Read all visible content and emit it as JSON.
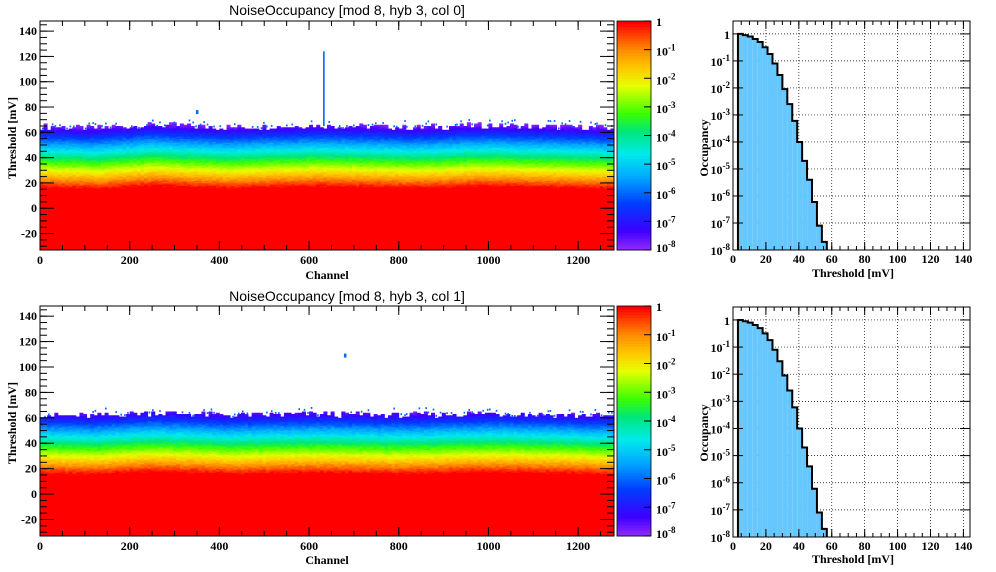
{
  "chart_data": [
    {
      "type": "heatmap",
      "title": "NoiseOccupancy [mod 8, hyb 3, col 0]",
      "xlabel": "Channel",
      "ylabel": "Threshold [mV]",
      "xlim": [
        0,
        1280
      ],
      "ylim": [
        -33,
        148
      ],
      "xticks": [
        0,
        200,
        400,
        600,
        800,
        1000,
        1200
      ],
      "yticks": [
        -20,
        0,
        20,
        40,
        60,
        80,
        100,
        120,
        140
      ],
      "zscale": "log",
      "zlim": [
        1e-08,
        1
      ],
      "colorbar_ticks": [
        {
          "value": 1,
          "base": "1",
          "exp": ""
        },
        {
          "value": 0.1,
          "base": "10",
          "exp": "-1"
        },
        {
          "value": 0.01,
          "base": "10",
          "exp": "-2"
        },
        {
          "value": 0.001,
          "base": "10",
          "exp": "-3"
        },
        {
          "value": 0.0001,
          "base": "10",
          "exp": "-4"
        },
        {
          "value": 1e-05,
          "base": "10",
          "exp": "-5"
        },
        {
          "value": 1e-06,
          "base": "10",
          "exp": "-6"
        },
        {
          "value": 1e-07,
          "base": "10",
          "exp": "-7"
        },
        {
          "value": 1e-08,
          "base": "10",
          "exp": "-8"
        }
      ],
      "profile_mV": {
        "full_occupancy_below": 15,
        "decade_drop_per_mV": 0.16,
        "noise_edge_mean": 63,
        "noise_edge_spread": 5,
        "modulation_channels": [
          [
            0,
            1.0
          ],
          [
            130,
            0.0
          ],
          [
            250,
            2.5
          ],
          [
            420,
            0.5
          ],
          [
            620,
            2.0
          ],
          [
            820,
            0.5
          ],
          [
            1000,
            2.0
          ],
          [
            1150,
            1.0
          ],
          [
            1280,
            0.0
          ]
        ]
      },
      "outliers": [
        {
          "channel": 350,
          "threshold": 76,
          "occupancy": 1e-06
        },
        {
          "channel": 633,
          "threshold_from": 65,
          "threshold_to": 124,
          "occupancy": 1e-06
        }
      ]
    },
    {
      "type": "bar",
      "title": "",
      "xlabel": "Threshold [mV]",
      "ylabel": "Occupancy",
      "xlim": [
        0,
        144
      ],
      "ylog": true,
      "ylim": [
        1e-08,
        3
      ],
      "xticks": [
        0,
        20,
        40,
        60,
        80,
        100,
        120,
        140
      ],
      "yticks": [
        {
          "value": 1,
          "base": "1",
          "exp": ""
        },
        {
          "value": 0.1,
          "base": "10",
          "exp": "-1"
        },
        {
          "value": 0.01,
          "base": "10",
          "exp": "-2"
        },
        {
          "value": 0.001,
          "base": "10",
          "exp": "-3"
        },
        {
          "value": 0.0001,
          "base": "10",
          "exp": "-4"
        },
        {
          "value": 1e-05,
          "base": "10",
          "exp": "-5"
        },
        {
          "value": 1e-06,
          "base": "10",
          "exp": "-6"
        },
        {
          "value": 1e-07,
          "base": "10",
          "exp": "-7"
        },
        {
          "value": 1e-08,
          "base": "10",
          "exp": "-8"
        }
      ],
      "bin_width": 3,
      "bin_edges_start": 3,
      "values": [
        1.0,
        0.9,
        0.8,
        0.65,
        0.5,
        0.32,
        0.18,
        0.08,
        0.03,
        0.009,
        0.0025,
        0.0006,
        0.0001,
        2e-05,
        4e-06,
        6e-07,
        8e-08,
        2e-08
      ],
      "grid": true,
      "fill_color": "#66c7ff"
    },
    {
      "type": "heatmap",
      "title": "NoiseOccupancy [mod 8, hyb 3, col 1]",
      "xlabel": "Channel",
      "ylabel": "Threshold [mV]",
      "xlim": [
        0,
        1280
      ],
      "ylim": [
        -33,
        148
      ],
      "xticks": [
        0,
        200,
        400,
        600,
        800,
        1000,
        1200
      ],
      "yticks": [
        -20,
        0,
        20,
        40,
        60,
        80,
        100,
        120,
        140
      ],
      "zscale": "log",
      "zlim": [
        1e-08,
        1
      ],
      "colorbar_ticks": [
        {
          "value": 1,
          "base": "1",
          "exp": ""
        },
        {
          "value": 0.1,
          "base": "10",
          "exp": "-1"
        },
        {
          "value": 0.01,
          "base": "10",
          "exp": "-2"
        },
        {
          "value": 0.001,
          "base": "10",
          "exp": "-3"
        },
        {
          "value": 0.0001,
          "base": "10",
          "exp": "-4"
        },
        {
          "value": 1e-05,
          "base": "10",
          "exp": "-5"
        },
        {
          "value": 1e-06,
          "base": "10",
          "exp": "-6"
        },
        {
          "value": 1e-07,
          "base": "10",
          "exp": "-7"
        },
        {
          "value": 1e-08,
          "base": "10",
          "exp": "-8"
        }
      ],
      "profile_mV": {
        "full_occupancy_below": 15,
        "decade_drop_per_mV": 0.16,
        "noise_edge_mean": 61,
        "noise_edge_spread": 5,
        "modulation_channels": [
          [
            0,
            1.0
          ],
          [
            120,
            0.0
          ],
          [
            250,
            2.5
          ],
          [
            420,
            0.5
          ],
          [
            620,
            1.5
          ],
          [
            820,
            0.5
          ],
          [
            1000,
            2.0
          ],
          [
            1150,
            1.0
          ],
          [
            1280,
            0.0
          ]
        ]
      },
      "outliers": [
        {
          "channel": 680,
          "threshold": 109,
          "occupancy": 1e-06
        }
      ]
    },
    {
      "type": "bar",
      "title": "",
      "xlabel": "Threshold [mV]",
      "ylabel": "Occupancy",
      "xlim": [
        0,
        144
      ],
      "ylog": true,
      "ylim": [
        1e-08,
        3
      ],
      "xticks": [
        0,
        20,
        40,
        60,
        80,
        100,
        120,
        140
      ],
      "yticks": [
        {
          "value": 1,
          "base": "1",
          "exp": ""
        },
        {
          "value": 0.1,
          "base": "10",
          "exp": "-1"
        },
        {
          "value": 0.01,
          "base": "10",
          "exp": "-2"
        },
        {
          "value": 0.001,
          "base": "10",
          "exp": "-3"
        },
        {
          "value": 0.0001,
          "base": "10",
          "exp": "-4"
        },
        {
          "value": 1e-05,
          "base": "10",
          "exp": "-5"
        },
        {
          "value": 1e-06,
          "base": "10",
          "exp": "-6"
        },
        {
          "value": 1e-07,
          "base": "10",
          "exp": "-7"
        },
        {
          "value": 1e-08,
          "base": "10",
          "exp": "-8"
        }
      ],
      "bin_width": 3,
      "bin_edges_start": 3,
      "values": [
        1.0,
        0.9,
        0.8,
        0.65,
        0.5,
        0.32,
        0.18,
        0.08,
        0.03,
        0.009,
        0.0025,
        0.0006,
        0.0001,
        2e-05,
        4e-06,
        6e-07,
        8e-08,
        2e-08
      ],
      "grid": true,
      "fill_color": "#66c7ff"
    }
  ]
}
